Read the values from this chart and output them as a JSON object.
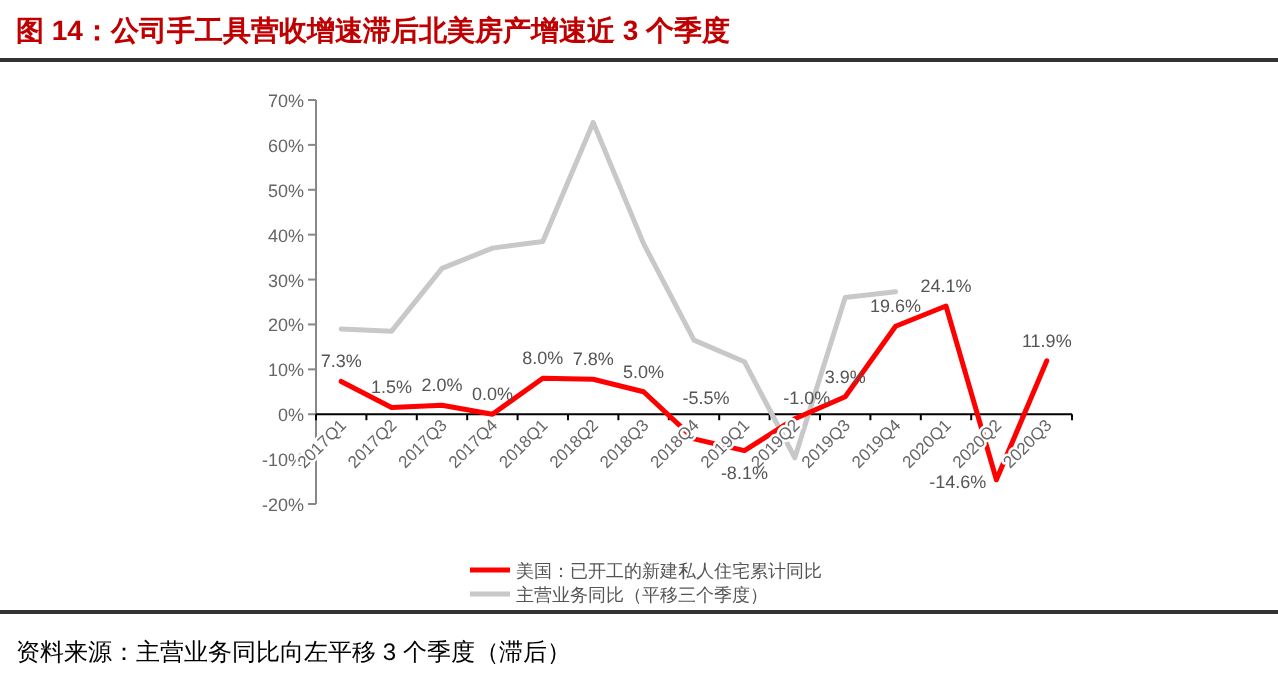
{
  "chart_data": {
    "type": "line",
    "title": "图 14：公司手工具营收增速滞后北美房产增速近 3 个季度",
    "categories": [
      "2017Q1",
      "2017Q2",
      "2017Q3",
      "2017Q4",
      "2018Q1",
      "2018Q2",
      "2018Q3",
      "2018Q4",
      "2019Q1",
      "2019Q2",
      "2019Q3",
      "2019Q4",
      "2020Q1",
      "2020Q2",
      "2020Q3"
    ],
    "series": [
      {
        "name": "美国：已开工的新建私人住宅累计同比",
        "color": "#ff0000",
        "values": [
          7.3,
          1.5,
          2.0,
          0.0,
          8.0,
          7.8,
          5.0,
          -5.5,
          -8.1,
          -1.0,
          3.9,
          19.6,
          24.1,
          -14.6,
          11.9
        ],
        "value_labels": [
          "7.3%",
          "1.5%",
          "2.0%",
          "0.0%",
          "8.0%",
          "7.8%",
          "5.0%",
          "-5.5%",
          "-8.1%",
          "-1.0%",
          "3.9%",
          "19.6%",
          "24.1%",
          "-14.6%",
          "11.9%"
        ]
      },
      {
        "name": "主营业务同比（平移三个季度）",
        "color": "#c8c8c8",
        "values": [
          19,
          18.5,
          32.5,
          37,
          38.5,
          65,
          38,
          16.5,
          11.7,
          -9.7,
          26,
          27.3,
          null,
          null,
          null
        ]
      }
    ],
    "ylim": [
      -20,
      70
    ],
    "yticks": [
      {
        "value": -20,
        "label": "-20%"
      },
      {
        "value": -10,
        "label": "-10%"
      },
      {
        "value": 0,
        "label": "0%"
      },
      {
        "value": 10,
        "label": "10%"
      },
      {
        "value": 20,
        "label": "20%"
      },
      {
        "value": 30,
        "label": "30%"
      },
      {
        "value": 40,
        "label": "40%"
      },
      {
        "value": 50,
        "label": "50%"
      },
      {
        "value": 60,
        "label": "60%"
      },
      {
        "value": 70,
        "label": "70%"
      }
    ],
    "legend": "bottom",
    "annotations": [
      "资料来源：主营业务同比向左平移 3 个季度（滞后）"
    ]
  }
}
